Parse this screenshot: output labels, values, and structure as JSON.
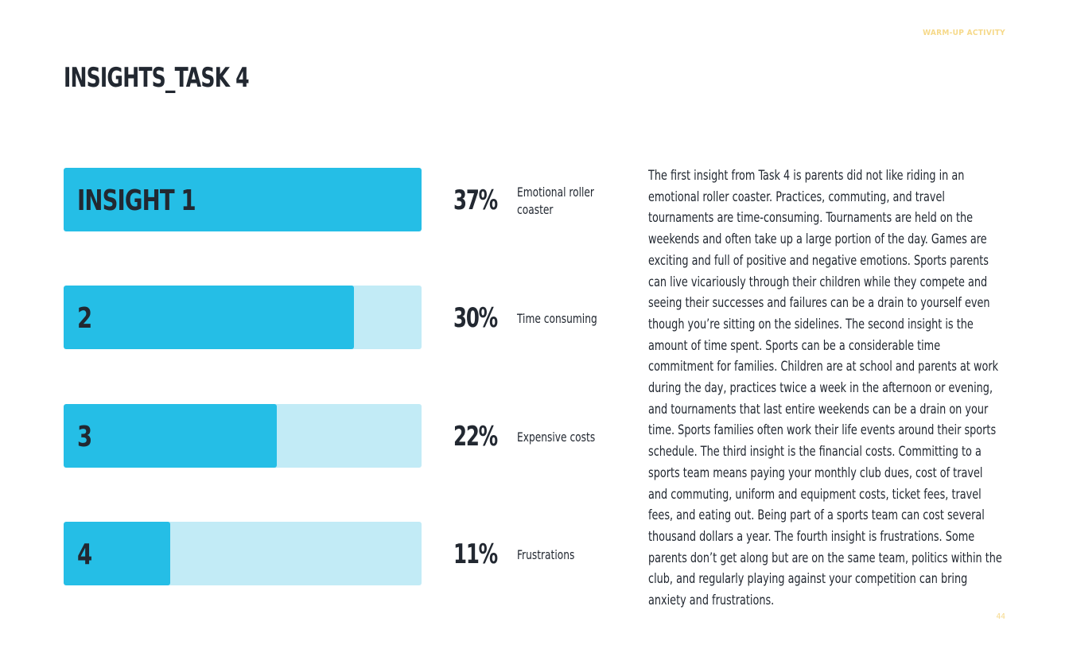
{
  "header": {
    "tag": "WARM-UP ACTIVITY",
    "title": "INSIGHTS_TASK 4"
  },
  "colors": {
    "bar_fill": "#25bee6",
    "bar_track": "#c2ebf6",
    "text": "#222831",
    "accent": "#f6d98a"
  },
  "chart_data": {
    "type": "bar",
    "orientation": "horizontal",
    "categories": [
      "INSIGHT 1",
      "2",
      "3",
      "4"
    ],
    "values": [
      37,
      30,
      22,
      11
    ],
    "value_labels": [
      "37%",
      "30%",
      "22%",
      "11%"
    ],
    "descriptions": [
      "Emotional roller coaster",
      "Time consuming",
      "Expensive costs",
      "Frustrations"
    ],
    "xlim": [
      0,
      37
    ]
  },
  "body_text": "The first insight from Task 4 is parents did not like riding in an emotional roller coaster. Practices, commuting, and travel tournaments are time-consuming. Tournaments are held on the weekends and often take up a large portion of the day. Games are exciting and full of positive and negative emotions. Sports parents can live vicariously through their children while they compete and seeing their successes and failures can be a drain to yourself even though you’re sitting on the sidelines. The second insight is the amount of time spent. Sports can be a considerable time commitment for families. Children are at school and parents at work during the day, practices twice a week in the afternoon or evening, and tournaments that last entire weekends can be a drain on your time. Sports families often work their life events around their sports schedule. The third insight is the financial costs. Committing to a sports team means paying your monthly club dues, cost of travel and commuting, uniform and equipment costs, ticket fees, travel fees, and eating out. Being part of a sports team can cost several thousand dollars a year. The fourth insight is frustrations. Some parents don’t get along but are on the same team, politics within the club, and regularly playing against your competition can bring anxiety and frustrations.",
  "footer": {
    "page_number": "44"
  }
}
